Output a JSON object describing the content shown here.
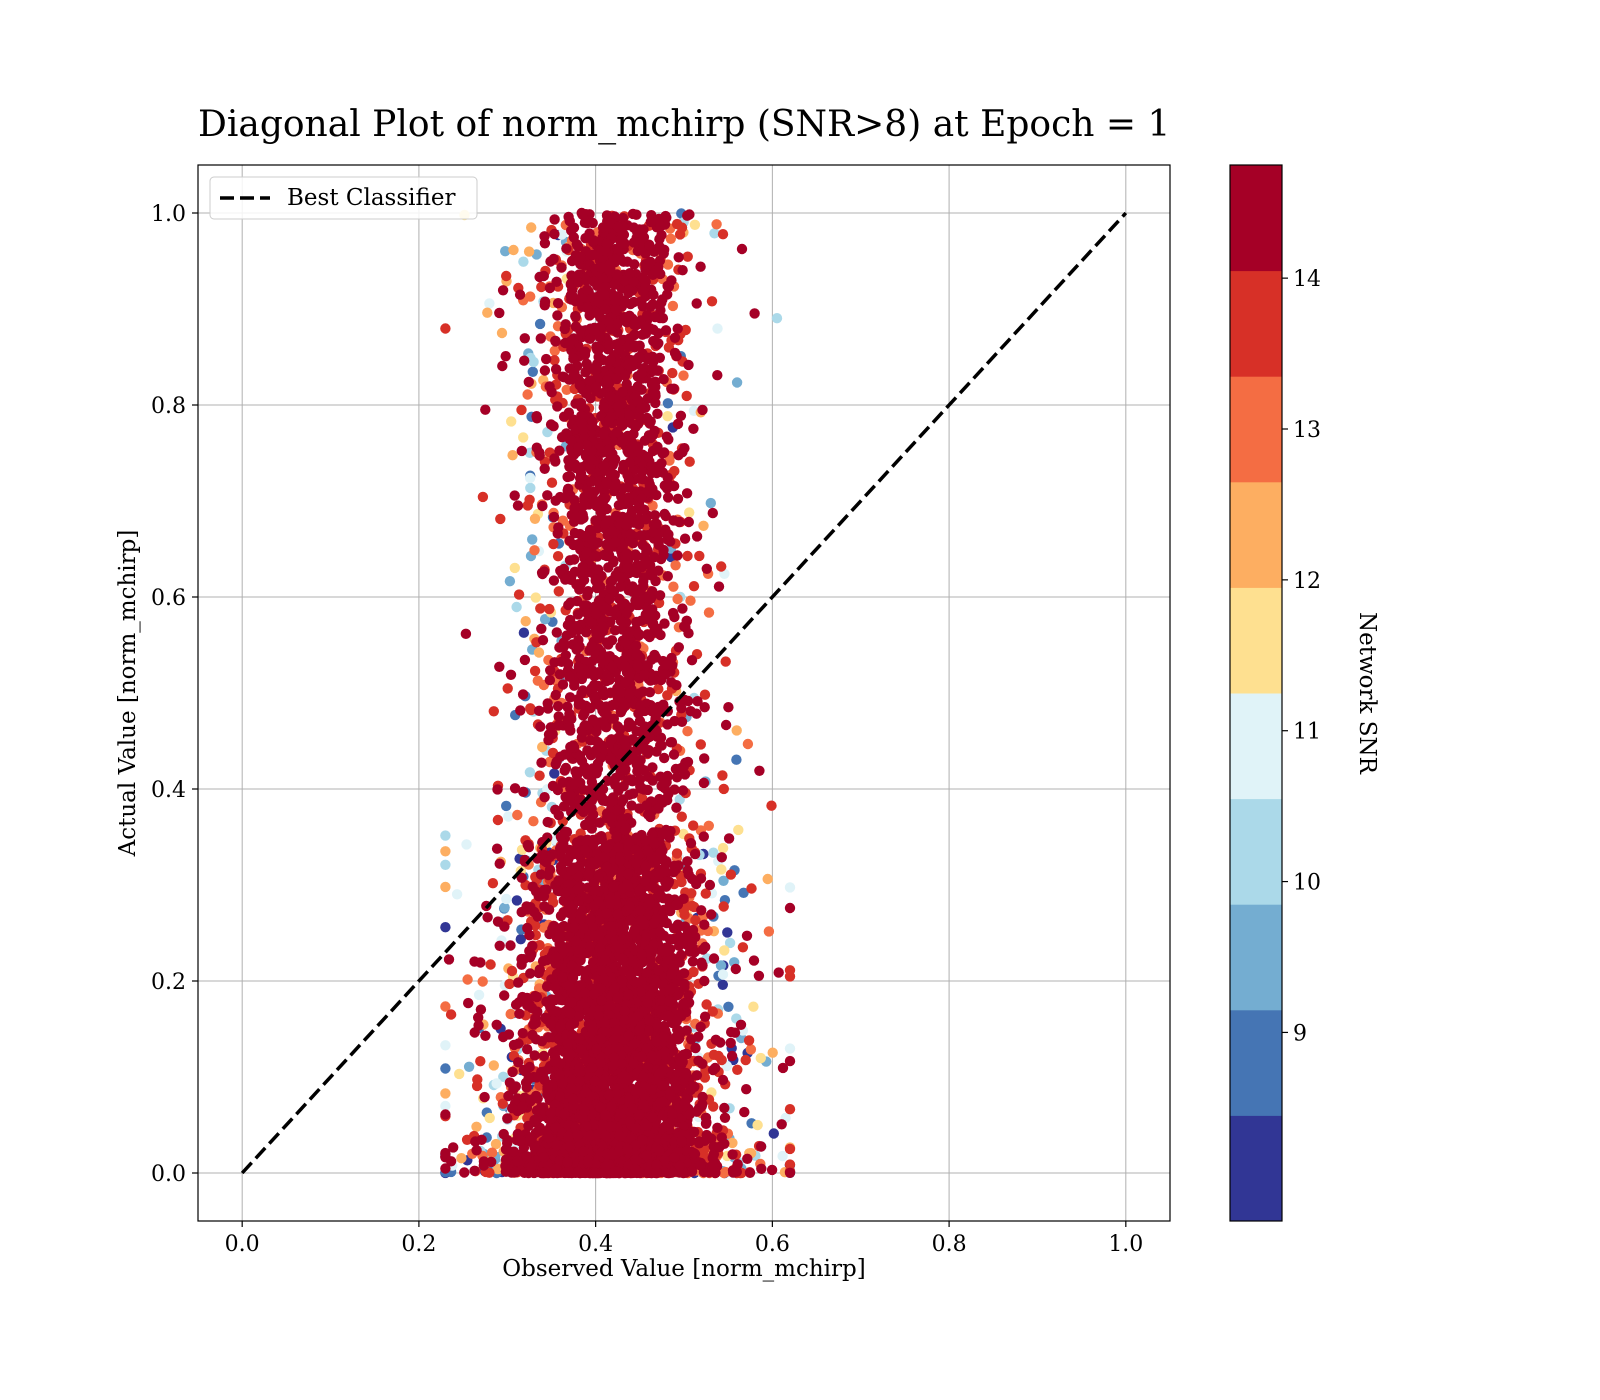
{
  "chart_data": {
    "type": "scatter",
    "title": "Diagonal Plot of norm_mchirp (SNR>8) at Epoch = 1",
    "xlabel": "Observed Value [norm_mchirp]",
    "ylabel": "Actual Value [norm_mchirp]",
    "xlim": [
      -0.05,
      1.05
    ],
    "ylim": [
      -0.05,
      1.05
    ],
    "xticks": [
      "0.0",
      "0.2",
      "0.4",
      "0.6",
      "0.8",
      "1.0"
    ],
    "yticks": [
      "0.0",
      "0.2",
      "0.4",
      "0.6",
      "0.8",
      "1.0"
    ],
    "grid": true,
    "legend": {
      "placement": "upper-left",
      "entries": [
        {
          "label": "Best Classifier",
          "style": "dashed",
          "color": "#000000"
        }
      ]
    },
    "reference_line": {
      "name": "Best Classifier",
      "x": [
        0.0,
        1.0
      ],
      "y": [
        0.0,
        1.0
      ]
    },
    "points_summary": {
      "count_estimate": 20000,
      "x_core": [
        0.33,
        0.52
      ],
      "x_spread": [
        0.23,
        0.62
      ],
      "y_range": [
        0.0,
        1.0
      ],
      "dominant_color": "#a50026"
    },
    "colorbar": {
      "label": "Network SNR",
      "range": [
        8.0,
        15.0
      ],
      "ticks": [
        "9",
        "10",
        "11",
        "12",
        "13",
        "14"
      ],
      "colors": [
        "#313695",
        "#4575b4",
        "#74add1",
        "#abd9e9",
        "#e0f3f8",
        "#fee090",
        "#fdae61",
        "#f46d43",
        "#d73027",
        "#a50026"
      ]
    }
  }
}
